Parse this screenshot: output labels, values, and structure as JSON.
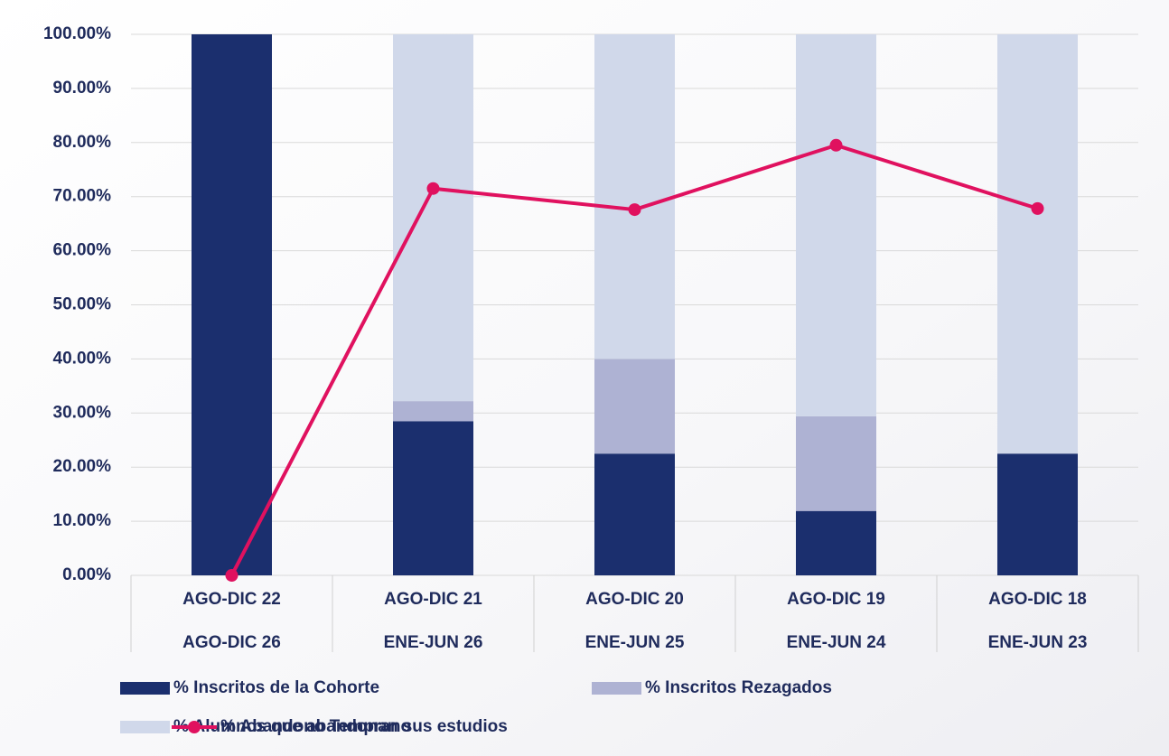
{
  "chart_data": {
    "type": "stacked-bar-line",
    "categories": [
      [
        "AGO-DIC 22",
        "AGO-DIC 26"
      ],
      [
        "AGO-DIC 21",
        "ENE-JUN 26"
      ],
      [
        "AGO-DIC 20",
        "ENE-JUN 25"
      ],
      [
        "AGO-DIC 19",
        "ENE-JUN 24"
      ],
      [
        "AGO-DIC 18",
        "ENE-JUN 23"
      ]
    ],
    "series": [
      {
        "name": "% Inscritos de la Cohorte",
        "type": "bar",
        "color": "#1b2f6e",
        "values": [
          100,
          28.5,
          22.5,
          11.9,
          22.5
        ]
      },
      {
        "name": "% Inscritos Rezagados",
        "type": "bar",
        "color": "#aeb2d3",
        "values": [
          0,
          3.7,
          17.5,
          17.5,
          0
        ]
      },
      {
        "name": "% Alumnos que abandonan sus estudios",
        "type": "bar",
        "color": "#d0d8ea",
        "values": [
          0,
          67.8,
          60,
          70.6,
          77.5
        ]
      },
      {
        "name": "% Abandono Temprano",
        "type": "line",
        "color": "#e0115f",
        "values": [
          0,
          71.5,
          67.6,
          79.5,
          67.8
        ]
      }
    ],
    "ylim": [
      0,
      100
    ],
    "yticks": [
      {
        "value": 0,
        "label": "0.00%"
      },
      {
        "value": 10,
        "label": "10.00%"
      },
      {
        "value": 20,
        "label": "20.00%"
      },
      {
        "value": 30,
        "label": "30.00%"
      },
      {
        "value": 40,
        "label": "40.00%"
      },
      {
        "value": 50,
        "label": "50.00%"
      },
      {
        "value": 60,
        "label": "60.00%"
      },
      {
        "value": 70,
        "label": "70.00%"
      },
      {
        "value": 80,
        "label": "80.00%"
      },
      {
        "value": 90,
        "label": "90.00%"
      },
      {
        "value": 100,
        "label": "100.00%"
      }
    ],
    "grid": true,
    "legend": "bottom"
  }
}
